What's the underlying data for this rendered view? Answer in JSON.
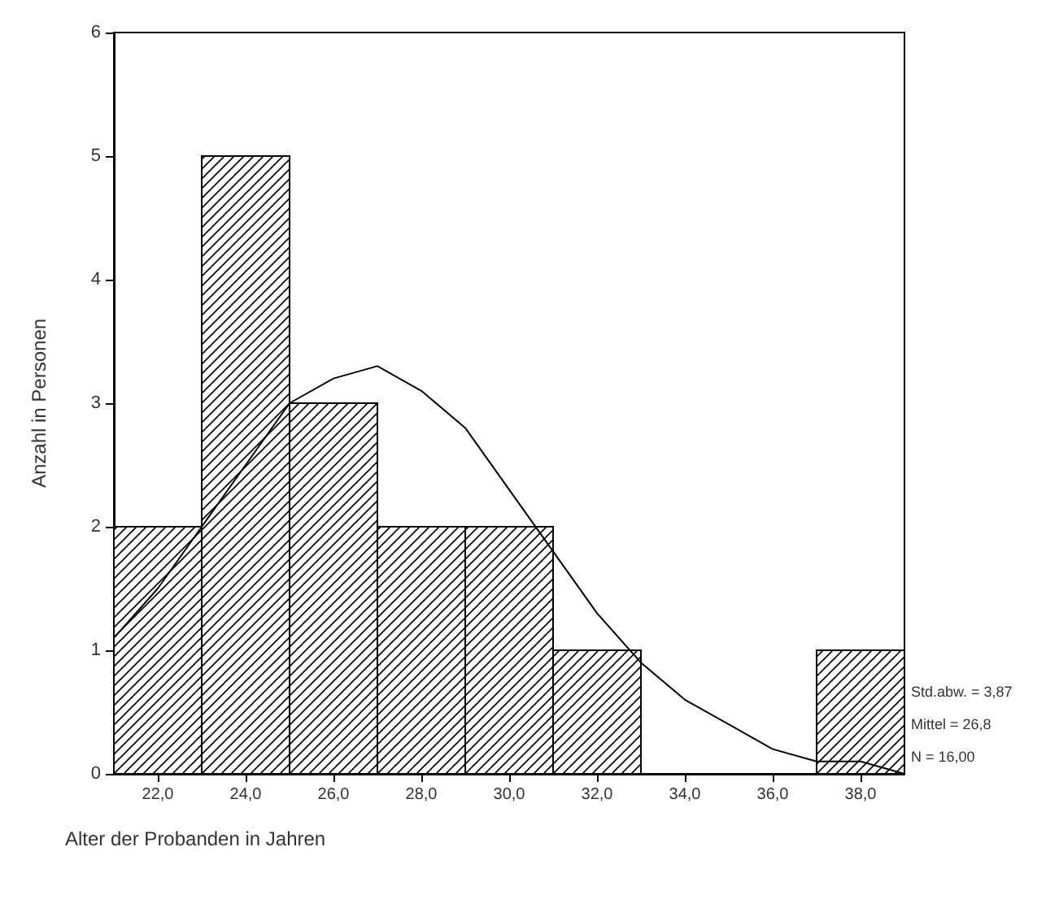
{
  "chart_data": {
    "type": "histogram",
    "xlabel": "Alter der Probanden in Jahren",
    "ylabel": "Anzahl in Personen",
    "bins": [
      21,
      23,
      25,
      27,
      29,
      31,
      33,
      35,
      37,
      39
    ],
    "values": [
      2,
      5,
      3,
      2,
      2,
      1,
      0,
      0,
      1
    ],
    "color": "#000000",
    "series": [
      {
        "type": "line",
        "color": "#000000",
        "marker": "none",
        "x": [
          21,
          22,
          23,
          24,
          25,
          26,
          27,
          28,
          29,
          30,
          31,
          32,
          33,
          34,
          35,
          36,
          37,
          38,
          39
        ],
        "values": [
          1.1,
          1.5,
          2.0,
          2.5,
          3.0,
          3.2,
          3.3,
          3.1,
          2.8,
          2.3,
          1.8,
          1.3,
          0.9,
          0.6,
          0.4,
          0.2,
          0.1,
          0.1,
          0.0
        ]
      }
    ],
    "xlim": [
      21,
      39
    ],
    "xticks": [
      {
        "value": 22,
        "label": "22,0"
      },
      {
        "value": 24,
        "label": "24,0"
      },
      {
        "value": 26,
        "label": "26,0"
      },
      {
        "value": 28,
        "label": "28,0"
      },
      {
        "value": 30,
        "label": "30,0"
      },
      {
        "value": 32,
        "label": "32,0"
      },
      {
        "value": 34,
        "label": "34,0"
      },
      {
        "value": 36,
        "label": "36,0"
      },
      {
        "value": 38,
        "label": "38,0"
      }
    ],
    "ylim": [
      0,
      6
    ],
    "yticks": [
      0,
      1,
      2,
      3,
      4,
      5,
      6
    ],
    "annotations": [
      "Std.abw. = 3,87",
      "Mittel = 26,8",
      "N = 16,00"
    ],
    "grid": false
  }
}
